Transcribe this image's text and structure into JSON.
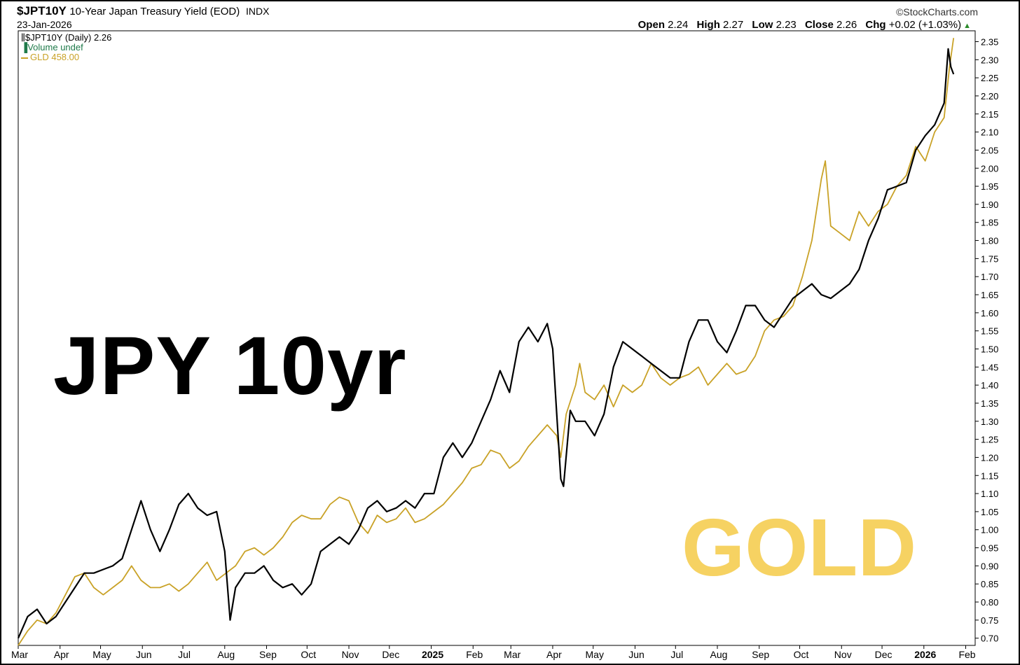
{
  "header": {
    "symbol": "$JPT10Y",
    "description": "10-Year Japan Treasury Yield (EOD)",
    "exchange": "INDX",
    "date": "23-Jan-2026",
    "brand": "©StockCharts.com",
    "open_label": "Open",
    "open": "2.24",
    "high_label": "High",
    "high": "2.27",
    "low_label": "Low",
    "low": "2.23",
    "close_label": "Close",
    "close": "2.26",
    "chg_label": "Chg",
    "chg": "+0.02 (+1.03%)"
  },
  "legend": {
    "main": "$JPT10Y (Daily) 2.26",
    "volume": "Volume undef",
    "overlay": "GLD 458.00"
  },
  "overlay_labels": {
    "jpy": "JPY 10yr",
    "gold": "GOLD"
  },
  "colors": {
    "yield": "#000000",
    "gold": "#c9a227",
    "gold_text": "#f6d262",
    "grid": "#e6e6e6"
  },
  "chart_data": {
    "type": "line",
    "x_ticks": [
      "Mar",
      "Apr",
      "May",
      "Jun",
      "Jul",
      "Aug",
      "Sep",
      "Oct",
      "Nov",
      "Dec",
      "2025",
      "Feb",
      "Mar",
      "Apr",
      "May",
      "Jun",
      "Jul",
      "Aug",
      "Sep",
      "Oct",
      "Nov",
      "Dec",
      "2026",
      "Feb"
    ],
    "x_start": "2024-03-01",
    "x_end": "2026-02-08",
    "ylim": [
      0.68,
      2.38
    ],
    "y_ticks": [
      "2.35",
      "2.30",
      "2.25",
      "2.20",
      "2.15",
      "2.10",
      "2.05",
      "2.00",
      "1.95",
      "1.90",
      "1.85",
      "1.80",
      "1.75",
      "1.70",
      "1.65",
      "1.60",
      "1.55",
      "1.50",
      "1.45",
      "1.40",
      "1.35",
      "1.30",
      "1.25",
      "1.20",
      "1.15",
      "1.10",
      "1.05",
      "1.00",
      "0.95",
      "0.90",
      "0.85",
      "0.80",
      "0.75",
      "0.70"
    ],
    "series": [
      {
        "name": "$JPT10Y",
        "points": [
          [
            "2024-03-01",
            0.7
          ],
          [
            "2024-03-08",
            0.76
          ],
          [
            "2024-03-15",
            0.78
          ],
          [
            "2024-03-22",
            0.74
          ],
          [
            "2024-03-29",
            0.76
          ],
          [
            "2024-04-05",
            0.8
          ],
          [
            "2024-04-12",
            0.84
          ],
          [
            "2024-04-19",
            0.88
          ],
          [
            "2024-04-26",
            0.88
          ],
          [
            "2024-05-03",
            0.89
          ],
          [
            "2024-05-10",
            0.9
          ],
          [
            "2024-05-17",
            0.92
          ],
          [
            "2024-05-24",
            1.0
          ],
          [
            "2024-05-31",
            1.08
          ],
          [
            "2024-06-07",
            1.0
          ],
          [
            "2024-06-14",
            0.94
          ],
          [
            "2024-06-21",
            1.0
          ],
          [
            "2024-06-28",
            1.07
          ],
          [
            "2024-07-05",
            1.1
          ],
          [
            "2024-07-12",
            1.06
          ],
          [
            "2024-07-19",
            1.04
          ],
          [
            "2024-07-26",
            1.05
          ],
          [
            "2024-08-01",
            0.94
          ],
          [
            "2024-08-05",
            0.75
          ],
          [
            "2024-08-09",
            0.84
          ],
          [
            "2024-08-16",
            0.88
          ],
          [
            "2024-08-23",
            0.88
          ],
          [
            "2024-08-30",
            0.9
          ],
          [
            "2024-09-06",
            0.86
          ],
          [
            "2024-09-13",
            0.84
          ],
          [
            "2024-09-20",
            0.85
          ],
          [
            "2024-09-27",
            0.82
          ],
          [
            "2024-10-04",
            0.85
          ],
          [
            "2024-10-11",
            0.94
          ],
          [
            "2024-10-18",
            0.96
          ],
          [
            "2024-10-25",
            0.98
          ],
          [
            "2024-11-01",
            0.96
          ],
          [
            "2024-11-08",
            1.0
          ],
          [
            "2024-11-15",
            1.06
          ],
          [
            "2024-11-22",
            1.08
          ],
          [
            "2024-11-29",
            1.05
          ],
          [
            "2024-12-06",
            1.06
          ],
          [
            "2024-12-13",
            1.08
          ],
          [
            "2024-12-20",
            1.06
          ],
          [
            "2024-12-27",
            1.1
          ],
          [
            "2025-01-03",
            1.1
          ],
          [
            "2025-01-10",
            1.2
          ],
          [
            "2025-01-17",
            1.24
          ],
          [
            "2025-01-24",
            1.2
          ],
          [
            "2025-01-31",
            1.24
          ],
          [
            "2025-02-07",
            1.3
          ],
          [
            "2025-02-14",
            1.36
          ],
          [
            "2025-02-21",
            1.44
          ],
          [
            "2025-02-28",
            1.38
          ],
          [
            "2025-03-07",
            1.52
          ],
          [
            "2025-03-14",
            1.56
          ],
          [
            "2025-03-21",
            1.52
          ],
          [
            "2025-03-28",
            1.57
          ],
          [
            "2025-04-01",
            1.5
          ],
          [
            "2025-04-04",
            1.32
          ],
          [
            "2025-04-07",
            1.14
          ],
          [
            "2025-04-09",
            1.12
          ],
          [
            "2025-04-14",
            1.33
          ],
          [
            "2025-04-18",
            1.3
          ],
          [
            "2025-04-25",
            1.3
          ],
          [
            "2025-05-02",
            1.26
          ],
          [
            "2025-05-09",
            1.32
          ],
          [
            "2025-05-16",
            1.45
          ],
          [
            "2025-05-23",
            1.52
          ],
          [
            "2025-05-30",
            1.5
          ],
          [
            "2025-06-06",
            1.48
          ],
          [
            "2025-06-13",
            1.46
          ],
          [
            "2025-06-20",
            1.44
          ],
          [
            "2025-06-27",
            1.42
          ],
          [
            "2025-07-04",
            1.42
          ],
          [
            "2025-07-11",
            1.52
          ],
          [
            "2025-07-18",
            1.58
          ],
          [
            "2025-07-25",
            1.58
          ],
          [
            "2025-08-01",
            1.52
          ],
          [
            "2025-08-08",
            1.49
          ],
          [
            "2025-08-15",
            1.55
          ],
          [
            "2025-08-22",
            1.62
          ],
          [
            "2025-08-29",
            1.62
          ],
          [
            "2025-09-05",
            1.58
          ],
          [
            "2025-09-12",
            1.56
          ],
          [
            "2025-09-19",
            1.6
          ],
          [
            "2025-09-26",
            1.64
          ],
          [
            "2025-10-03",
            1.66
          ],
          [
            "2025-10-10",
            1.68
          ],
          [
            "2025-10-17",
            1.65
          ],
          [
            "2025-10-24",
            1.64
          ],
          [
            "2025-10-31",
            1.66
          ],
          [
            "2025-11-07",
            1.68
          ],
          [
            "2025-11-14",
            1.72
          ],
          [
            "2025-11-21",
            1.8
          ],
          [
            "2025-11-28",
            1.86
          ],
          [
            "2025-12-05",
            1.94
          ],
          [
            "2025-12-12",
            1.95
          ],
          [
            "2025-12-19",
            1.96
          ],
          [
            "2025-12-26",
            2.05
          ],
          [
            "2026-01-02",
            2.09
          ],
          [
            "2026-01-09",
            2.12
          ],
          [
            "2026-01-16",
            2.18
          ],
          [
            "2026-01-19",
            2.33
          ],
          [
            "2026-01-21",
            2.28
          ],
          [
            "2026-01-23",
            2.26
          ]
        ]
      },
      {
        "name": "GLD",
        "points": [
          [
            "2024-03-01",
            0.68
          ],
          [
            "2024-03-08",
            0.72
          ],
          [
            "2024-03-15",
            0.75
          ],
          [
            "2024-03-22",
            0.74
          ],
          [
            "2024-03-29",
            0.77
          ],
          [
            "2024-04-05",
            0.82
          ],
          [
            "2024-04-12",
            0.87
          ],
          [
            "2024-04-19",
            0.88
          ],
          [
            "2024-04-26",
            0.84
          ],
          [
            "2024-05-03",
            0.82
          ],
          [
            "2024-05-10",
            0.84
          ],
          [
            "2024-05-17",
            0.86
          ],
          [
            "2024-05-24",
            0.9
          ],
          [
            "2024-05-31",
            0.86
          ],
          [
            "2024-06-07",
            0.84
          ],
          [
            "2024-06-14",
            0.84
          ],
          [
            "2024-06-21",
            0.85
          ],
          [
            "2024-06-28",
            0.83
          ],
          [
            "2024-07-05",
            0.85
          ],
          [
            "2024-07-12",
            0.88
          ],
          [
            "2024-07-19",
            0.91
          ],
          [
            "2024-07-26",
            0.86
          ],
          [
            "2024-08-02",
            0.88
          ],
          [
            "2024-08-09",
            0.9
          ],
          [
            "2024-08-16",
            0.94
          ],
          [
            "2024-08-23",
            0.95
          ],
          [
            "2024-08-30",
            0.93
          ],
          [
            "2024-09-06",
            0.95
          ],
          [
            "2024-09-13",
            0.98
          ],
          [
            "2024-09-20",
            1.02
          ],
          [
            "2024-09-27",
            1.04
          ],
          [
            "2024-10-04",
            1.03
          ],
          [
            "2024-10-11",
            1.03
          ],
          [
            "2024-10-18",
            1.07
          ],
          [
            "2024-10-25",
            1.09
          ],
          [
            "2024-11-01",
            1.08
          ],
          [
            "2024-11-08",
            1.02
          ],
          [
            "2024-11-15",
            0.99
          ],
          [
            "2024-11-22",
            1.04
          ],
          [
            "2024-11-29",
            1.02
          ],
          [
            "2024-12-06",
            1.03
          ],
          [
            "2024-12-13",
            1.06
          ],
          [
            "2024-12-20",
            1.02
          ],
          [
            "2024-12-27",
            1.03
          ],
          [
            "2025-01-03",
            1.05
          ],
          [
            "2025-01-10",
            1.07
          ],
          [
            "2025-01-17",
            1.1
          ],
          [
            "2025-01-24",
            1.13
          ],
          [
            "2025-01-31",
            1.17
          ],
          [
            "2025-02-07",
            1.18
          ],
          [
            "2025-02-14",
            1.22
          ],
          [
            "2025-02-21",
            1.21
          ],
          [
            "2025-02-28",
            1.17
          ],
          [
            "2025-03-07",
            1.19
          ],
          [
            "2025-03-14",
            1.23
          ],
          [
            "2025-03-21",
            1.26
          ],
          [
            "2025-03-28",
            1.29
          ],
          [
            "2025-04-04",
            1.26
          ],
          [
            "2025-04-07",
            1.2
          ],
          [
            "2025-04-11",
            1.32
          ],
          [
            "2025-04-18",
            1.4
          ],
          [
            "2025-04-21",
            1.46
          ],
          [
            "2025-04-25",
            1.38
          ],
          [
            "2025-05-02",
            1.36
          ],
          [
            "2025-05-09",
            1.4
          ],
          [
            "2025-05-16",
            1.34
          ],
          [
            "2025-05-23",
            1.4
          ],
          [
            "2025-05-30",
            1.38
          ],
          [
            "2025-06-06",
            1.4
          ],
          [
            "2025-06-13",
            1.46
          ],
          [
            "2025-06-20",
            1.42
          ],
          [
            "2025-06-27",
            1.4
          ],
          [
            "2025-07-04",
            1.42
          ],
          [
            "2025-07-11",
            1.43
          ],
          [
            "2025-07-18",
            1.45
          ],
          [
            "2025-07-25",
            1.4
          ],
          [
            "2025-08-01",
            1.43
          ],
          [
            "2025-08-08",
            1.46
          ],
          [
            "2025-08-15",
            1.43
          ],
          [
            "2025-08-22",
            1.44
          ],
          [
            "2025-08-29",
            1.48
          ],
          [
            "2025-09-05",
            1.55
          ],
          [
            "2025-09-12",
            1.58
          ],
          [
            "2025-09-19",
            1.59
          ],
          [
            "2025-09-26",
            1.62
          ],
          [
            "2025-10-03",
            1.7
          ],
          [
            "2025-10-10",
            1.8
          ],
          [
            "2025-10-17",
            1.97
          ],
          [
            "2025-10-20",
            2.02
          ],
          [
            "2025-10-24",
            1.84
          ],
          [
            "2025-10-31",
            1.82
          ],
          [
            "2025-11-07",
            1.8
          ],
          [
            "2025-11-14",
            1.88
          ],
          [
            "2025-11-21",
            1.84
          ],
          [
            "2025-11-28",
            1.88
          ],
          [
            "2025-12-05",
            1.9
          ],
          [
            "2025-12-12",
            1.95
          ],
          [
            "2025-12-19",
            1.98
          ],
          [
            "2025-12-26",
            2.06
          ],
          [
            "2026-01-02",
            2.02
          ],
          [
            "2026-01-09",
            2.1
          ],
          [
            "2026-01-16",
            2.14
          ],
          [
            "2026-01-20",
            2.28
          ],
          [
            "2026-01-23",
            2.36
          ]
        ]
      }
    ]
  }
}
